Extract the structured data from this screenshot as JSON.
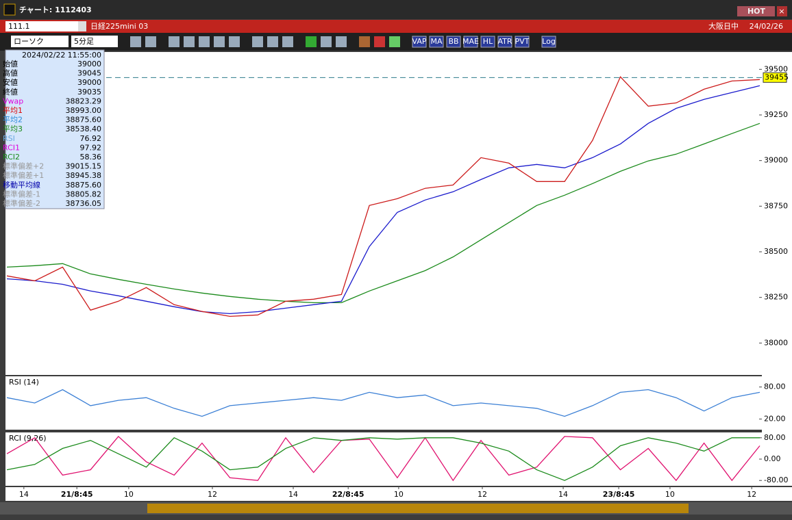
{
  "window": {
    "title": "チャート: 1112403",
    "button": "HOT"
  },
  "toolbar": {
    "code": "111.1",
    "symbol": "日経225mini 03",
    "market": "大阪日中",
    "date": "24/02/26",
    "chart_type": "ローソク",
    "interval": "5分足",
    "buttons": [
      "VAP",
      "MA",
      "BB",
      "MAE",
      "HL",
      "ATR",
      "PVT",
      "Log"
    ]
  },
  "info_panel": {
    "date": "2024/02/22",
    "time": "11:55:00",
    "rows": [
      [
        "始値",
        "39000"
      ],
      [
        "高値",
        "39045"
      ],
      [
        "安値",
        "39000"
      ],
      [
        "終値",
        "39035"
      ],
      [
        "Vwap",
        "38823.29"
      ],
      [
        "平均1",
        "38993.00"
      ],
      [
        "平均2",
        "38875.60"
      ],
      [
        "平均3",
        "38538.40"
      ],
      [
        "RSI",
        "76.92"
      ],
      [
        "RCI1",
        "97.92"
      ],
      [
        "RCI2",
        "58.36"
      ],
      [
        "標準偏差+2",
        "39015.15"
      ],
      [
        "標準偏差+1",
        "38945.38"
      ],
      [
        "移動平均線",
        "38875.60"
      ],
      [
        "標準偏差-1",
        "38805.82"
      ],
      [
        "標準偏差-2",
        "38736.05"
      ]
    ]
  },
  "chart_data": [
    {
      "type": "line",
      "x": [
        0,
        1,
        2,
        3,
        4,
        5,
        6,
        7,
        8,
        9,
        10,
        11,
        12,
        13,
        14,
        15,
        16,
        17,
        18,
        19,
        20,
        21,
        22,
        23,
        24,
        25,
        26,
        27
      ],
      "xlim": [
        0,
        27
      ],
      "xticks": [
        {
          "value": 0.61,
          "label": "14"
        },
        {
          "value": 2.51,
          "label": "21/8:45"
        },
        {
          "value": 4.37,
          "label": "10"
        },
        {
          "value": 7.37,
          "label": "12"
        },
        {
          "value": 10.27,
          "label": "14"
        },
        {
          "value": 12.24,
          "label": "22/8:45"
        },
        {
          "value": 14.05,
          "label": "10"
        },
        {
          "value": 17.05,
          "label": "12"
        },
        {
          "value": 19.95,
          "label": "14"
        },
        {
          "value": 21.94,
          "label": "23/8:45"
        },
        {
          "value": 23.78,
          "label": "10"
        },
        {
          "value": 26.71,
          "label": "12"
        }
      ],
      "ylim": [
        37825,
        39595
      ],
      "yticks": [
        38000,
        38250,
        38500,
        38750,
        39000,
        39250,
        39500
      ],
      "last_price": 39455,
      "series": [
        {
          "name": "平均3",
          "color": "#1a8a1a",
          "values": [
            38416,
            38424,
            38435,
            38379,
            38349,
            38322,
            38296,
            38274,
            38255,
            38240,
            38229,
            38221,
            38221,
            38285,
            38341,
            38397,
            38472,
            38566,
            38660,
            38754,
            38810,
            38874,
            38941,
            38998,
            39035,
            39091,
            39148,
            39204
          ]
        },
        {
          "name": "平均2",
          "color": "#1a1acc",
          "values": [
            38352,
            38341,
            38322,
            38285,
            38259,
            38229,
            38199,
            38172,
            38161,
            38172,
            38191,
            38210,
            38229,
            38529,
            38716,
            38784,
            38829,
            38896,
            38960,
            38979,
            38960,
            39016,
            39091,
            39204,
            39286,
            39335,
            39373,
            39410
          ]
        },
        {
          "name": "平均1",
          "color": "#cc1a1a",
          "values": [
            38368,
            38341,
            38416,
            38180,
            38229,
            38304,
            38210,
            38173,
            38146,
            38154,
            38229,
            38240,
            38266,
            38754,
            38791,
            38848,
            38866,
            39016,
            38986,
            38885,
            38885,
            39110,
            39459,
            39298,
            39316,
            39391,
            39436,
            39444
          ]
        }
      ]
    },
    {
      "type": "line",
      "title": "RSI (14)",
      "ylim": [
        0,
        100
      ],
      "yticks": [
        {
          "value": 80,
          "label": "80.00"
        },
        {
          "value": 20,
          "label": "20.00"
        }
      ],
      "series": [
        {
          "name": "RSI",
          "color": "#3a7fd5",
          "values": [
            60,
            50,
            75,
            45,
            55,
            60,
            40,
            25,
            45,
            50,
            55,
            60,
            55,
            70,
            60,
            65,
            45,
            50,
            45,
            40,
            25,
            45,
            70,
            75,
            60,
            35,
            60,
            70
          ]
        }
      ]
    },
    {
      "type": "line",
      "title": "RCI (9,26)",
      "ylim": [
        -100,
        100
      ],
      "yticks": [
        {
          "value": 80,
          "label": "80.00"
        },
        {
          "value": 0,
          "label": "0.00"
        },
        {
          "value": -80,
          "label": "-80.00"
        }
      ],
      "series": [
        {
          "name": "RCI1",
          "color": "#e0106e",
          "values": [
            20,
            80,
            -60,
            -40,
            85,
            -10,
            -60,
            60,
            -70,
            -80,
            80,
            -50,
            70,
            75,
            -70,
            80,
            -80,
            70,
            -60,
            -30,
            85,
            80,
            -40,
            40,
            -80,
            60,
            -80,
            50
          ]
        },
        {
          "name": "RCI2",
          "color": "#1a8a1a",
          "values": [
            -40,
            -20,
            40,
            70,
            20,
            -30,
            80,
            30,
            -40,
            -30,
            40,
            80,
            70,
            80,
            75,
            80,
            80,
            60,
            30,
            -40,
            -80,
            -30,
            50,
            80,
            60,
            30,
            80,
            80
          ]
        }
      ]
    }
  ]
}
